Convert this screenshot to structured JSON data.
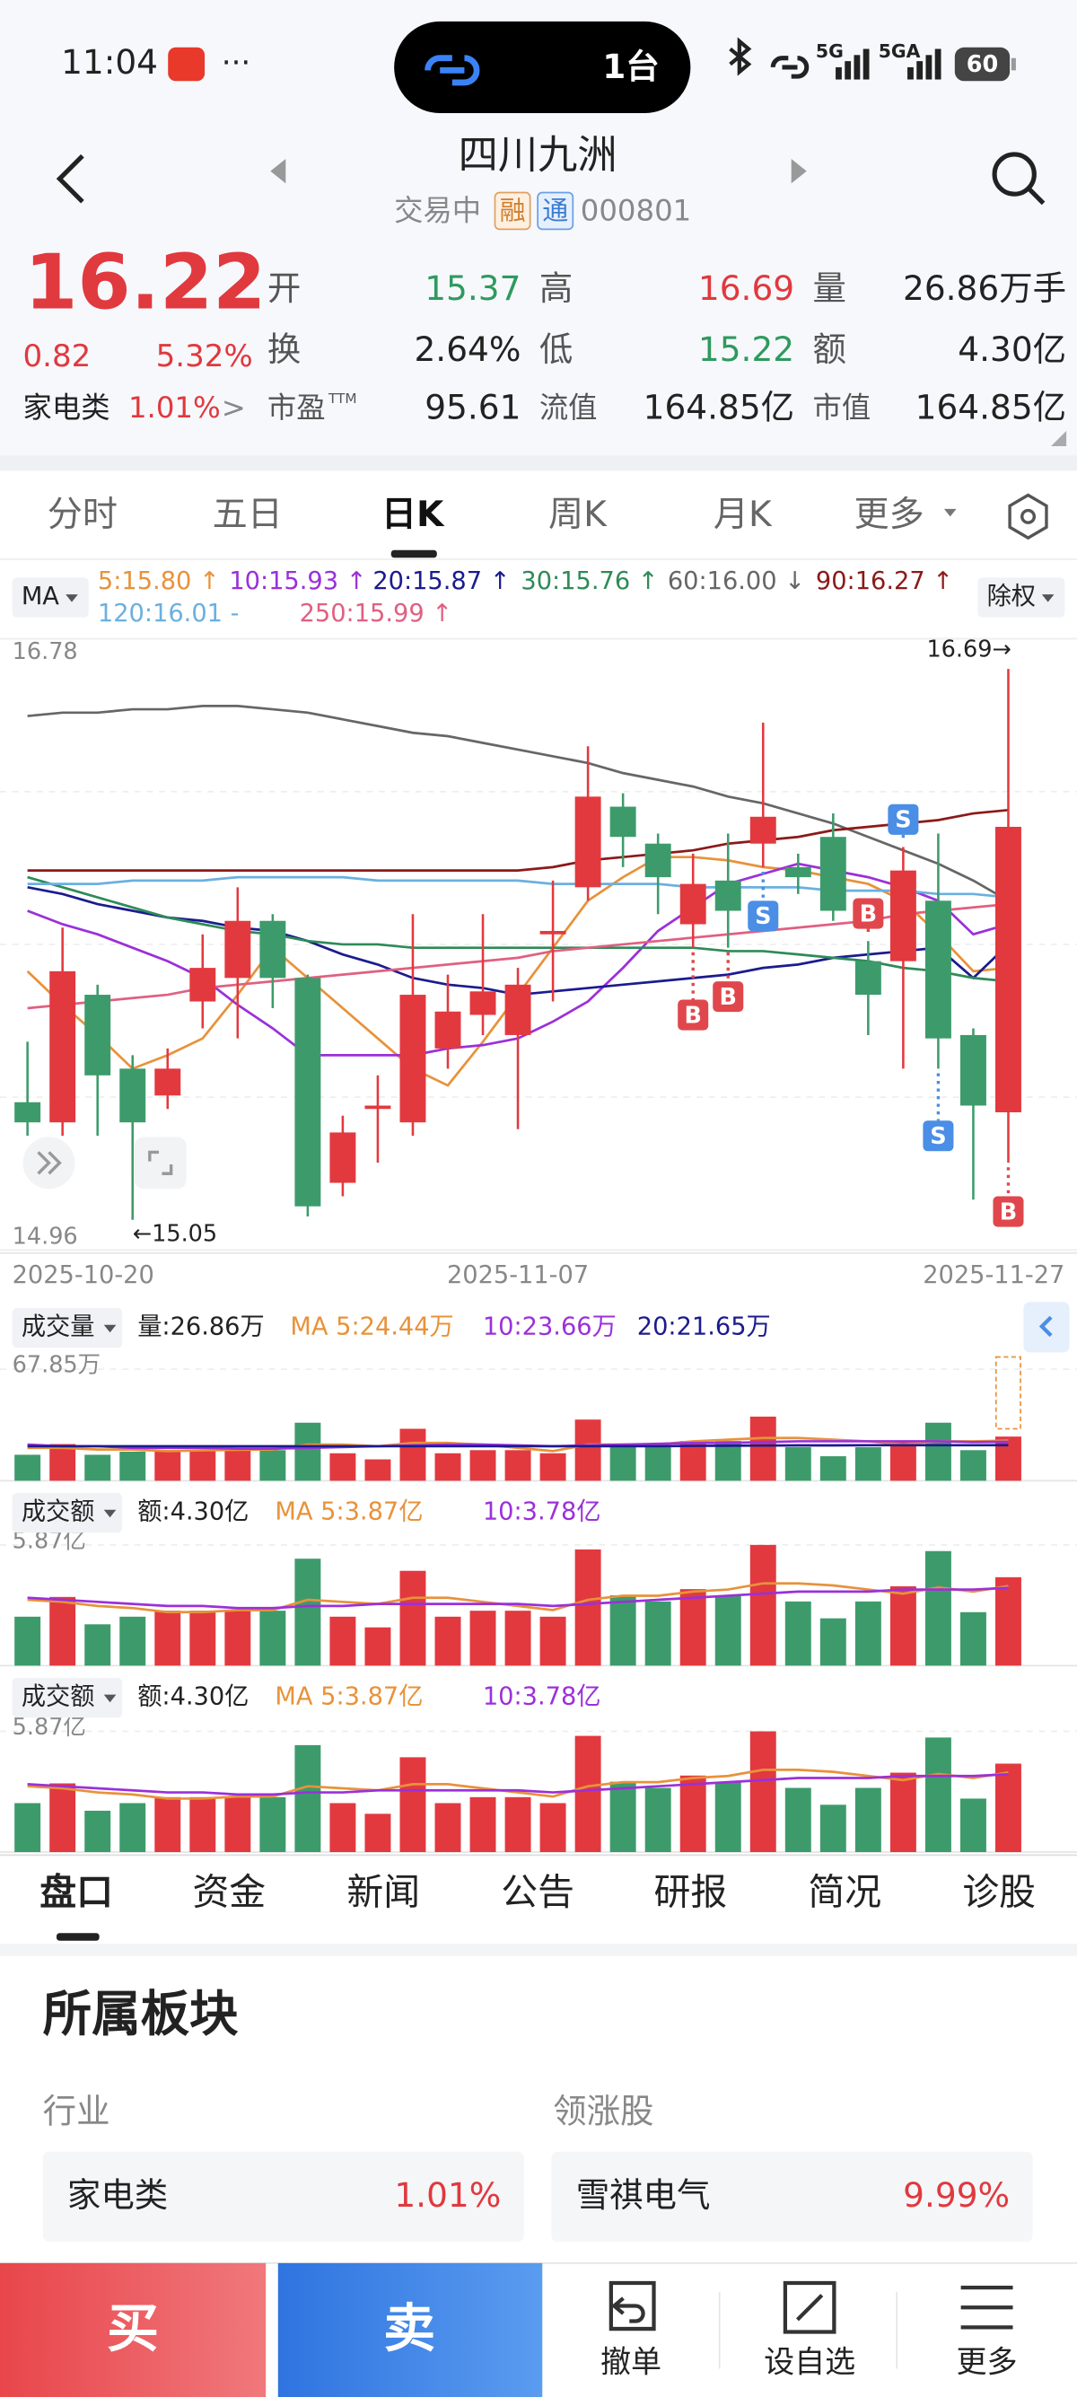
{
  "status_bar": {
    "time": "11:04",
    "more": "···",
    "island_text": "1台",
    "signal1": "5G",
    "signal2": "5GA",
    "battery": "60"
  },
  "header": {
    "title": "四川九洲",
    "state": "交易中",
    "tag1": "融",
    "tag2": "通",
    "code": "000801"
  },
  "quote": {
    "price": "16.22",
    "change": "0.82",
    "change_pct": "5.32%",
    "sector": "家电类",
    "sector_pct": "1.01%",
    "sector_arrow": ">",
    "pe_suffix": "TTM",
    "stats": [
      {
        "label": "开",
        "value": "15.37",
        "color": "#2e9a5e"
      },
      {
        "label": "高",
        "value": "16.69",
        "color": "#e0393e"
      },
      {
        "label": "量",
        "value": "26.86万手",
        "color": "#222222"
      },
      {
        "label": "换",
        "value": "2.64%",
        "color": "#222222"
      },
      {
        "label": "低",
        "value": "15.22",
        "color": "#2e9a5e"
      },
      {
        "label": "额",
        "value": "4.30亿",
        "color": "#222222"
      },
      {
        "label": "市盈",
        "value": "95.61",
        "color": "#222222"
      },
      {
        "label": "流值",
        "value": "164.85亿",
        "color": "#222222"
      },
      {
        "label": "市值",
        "value": "164.85亿",
        "color": "#222222"
      }
    ]
  },
  "chart_tabs": [
    "分时",
    "五日",
    "日K",
    "周K",
    "月K",
    "更多"
  ],
  "chart_controls": {
    "ma": "MA",
    "adjust": "除权"
  },
  "chart_data": [
    {
      "type": "candlestick",
      "categories": [
        "2025-10-20",
        null,
        null,
        null,
        null,
        null,
        null,
        null,
        null,
        null,
        null,
        null,
        null,
        null,
        "2025-11-07",
        null,
        null,
        null,
        null,
        null,
        null,
        null,
        null,
        null,
        null,
        null,
        null,
        null,
        "2025-11-27"
      ],
      "open": [
        15.4,
        15.34,
        15.72,
        15.5,
        15.42,
        15.7,
        15.77,
        15.94,
        15.77,
        15.16,
        15.38,
        15.34,
        15.56,
        15.66,
        15.6,
        15.9,
        16.04,
        16.28,
        16.17,
        15.93,
        16.06,
        16.17,
        16.1,
        16.19,
        15.82,
        15.82,
        16.0,
        15.6,
        15.37
      ],
      "high": [
        15.58,
        15.92,
        15.75,
        15.54,
        15.56,
        15.9,
        16.04,
        15.96,
        15.78,
        15.36,
        15.48,
        15.96,
        15.78,
        15.96,
        15.8,
        16.06,
        16.46,
        16.32,
        16.2,
        16.14,
        16.2,
        16.53,
        16.14,
        16.26,
        15.88,
        16.16,
        16.2,
        15.62,
        16.69
      ],
      "low": [
        15.3,
        15.3,
        15.3,
        15.05,
        15.38,
        15.62,
        15.59,
        15.68,
        15.06,
        15.12,
        15.22,
        15.3,
        15.5,
        15.6,
        15.32,
        15.7,
        16.0,
        16.1,
        15.96,
        15.86,
        15.86,
        16.1,
        16.02,
        15.94,
        15.6,
        15.5,
        15.5,
        15.11,
        15.22
      ],
      "close": [
        15.34,
        15.79,
        15.48,
        15.34,
        15.5,
        15.8,
        15.94,
        15.77,
        15.09,
        15.31,
        15.39,
        15.72,
        15.67,
        15.73,
        15.75,
        15.91,
        16.31,
        16.19,
        16.07,
        16.05,
        15.97,
        16.25,
        16.07,
        15.97,
        15.72,
        16.09,
        15.59,
        15.39,
        16.22
      ],
      "up_color": "#e2393f",
      "down_color": "#3d9b6b",
      "ylim": [
        14.96,
        16.78
      ],
      "yticks": [
        14.96,
        16.78
      ],
      "grid": true,
      "series": [
        {
          "name": "5:15.80 ↑",
          "color": "#e8923a",
          "values": [
            15.79,
            15.69,
            15.6,
            15.5,
            15.54,
            15.59,
            15.72,
            15.86,
            15.77,
            15.68,
            15.59,
            15.5,
            15.45,
            15.58,
            15.72,
            15.86,
            16.0,
            16.07,
            16.13,
            16.13,
            16.12,
            16.1,
            16.09,
            16.07,
            16.05,
            16.0,
            15.9,
            15.79,
            15.8
          ]
        },
        {
          "name": "10:15.93 ↑",
          "color": "#9b30d9",
          "values": [
            15.97,
            15.93,
            15.9,
            15.86,
            15.82,
            15.77,
            15.69,
            15.62,
            15.54,
            15.54,
            15.54,
            15.54,
            15.56,
            15.57,
            15.59,
            15.64,
            15.7,
            15.8,
            15.91,
            15.98,
            16.05,
            16.08,
            16.11,
            16.09,
            16.07,
            16.04,
            16.0,
            15.9,
            15.93
          ]
        },
        {
          "name": "20:15.87 ↑",
          "color": "#1b1b8f",
          "values": [
            16.04,
            16.02,
            15.99,
            15.97,
            15.95,
            15.94,
            15.92,
            15.91,
            15.88,
            15.84,
            15.81,
            15.77,
            15.75,
            15.74,
            15.72,
            15.73,
            15.74,
            15.75,
            15.76,
            15.77,
            15.78,
            15.8,
            15.81,
            15.83,
            15.84,
            15.85,
            15.86,
            15.77,
            15.87
          ]
        },
        {
          "name": "30:15.76 ↑",
          "color": "#2e8b57",
          "values": [
            16.07,
            16.04,
            16.01,
            15.98,
            15.95,
            15.93,
            15.91,
            15.9,
            15.88,
            15.87,
            15.87,
            15.86,
            15.86,
            15.86,
            15.86,
            15.86,
            15.86,
            15.86,
            15.86,
            15.86,
            15.85,
            15.85,
            15.84,
            15.83,
            15.82,
            15.8,
            15.79,
            15.77,
            15.76
          ]
        },
        {
          "name": "60:16.00 ↓",
          "color": "#666666",
          "values": [
            16.55,
            16.56,
            16.56,
            16.57,
            16.57,
            16.58,
            16.58,
            16.57,
            16.56,
            16.54,
            16.52,
            16.5,
            16.49,
            16.47,
            16.45,
            16.43,
            16.41,
            16.38,
            16.36,
            16.34,
            16.31,
            16.29,
            16.26,
            16.23,
            16.19,
            16.15,
            16.11,
            16.06,
            16.0
          ]
        },
        {
          "name": "90:16.27 ↑",
          "color": "#8b1a1a",
          "values": [
            16.09,
            16.09,
            16.09,
            16.09,
            16.09,
            16.09,
            16.09,
            16.09,
            16.09,
            16.09,
            16.09,
            16.09,
            16.09,
            16.09,
            16.09,
            16.1,
            16.12,
            16.13,
            16.14,
            16.15,
            16.17,
            16.18,
            16.19,
            16.21,
            16.22,
            16.23,
            16.24,
            16.26,
            16.27
          ]
        },
        {
          "name": "120:16.01 -",
          "color": "#6ab0e0",
          "values": [
            16.05,
            16.05,
            16.05,
            16.06,
            16.06,
            16.06,
            16.07,
            16.07,
            16.07,
            16.07,
            16.06,
            16.06,
            16.06,
            16.06,
            16.06,
            16.05,
            16.05,
            16.05,
            16.05,
            16.04,
            16.04,
            16.04,
            16.04,
            16.03,
            16.03,
            16.03,
            16.02,
            16.02,
            16.01
          ]
        },
        {
          "name": "250:15.99 ↑",
          "color": "#e06080",
          "values": [
            15.68,
            15.69,
            15.7,
            15.71,
            15.72,
            15.74,
            15.75,
            15.76,
            15.77,
            15.78,
            15.79,
            15.8,
            15.81,
            15.82,
            15.83,
            15.85,
            15.86,
            15.87,
            15.88,
            15.89,
            15.9,
            15.91,
            15.92,
            15.93,
            15.94,
            15.96,
            15.97,
            15.98,
            15.99
          ]
        }
      ],
      "annotations": {
        "high": "16.69→",
        "low": "←15.05"
      },
      "signals": [
        {
          "label": "S",
          "index": 25,
          "side": "above",
          "color": "#4a8ee6"
        },
        {
          "label": "B",
          "index": 24,
          "side": "above",
          "color": "#e0474c"
        },
        {
          "label": "S",
          "index": 21,
          "side": "below",
          "color": "#4a8ee6"
        },
        {
          "label": "B",
          "index": 19,
          "side": "below",
          "color": "#e0474c"
        },
        {
          "label": "B",
          "index": 20,
          "side": "below",
          "color": "#e0474c"
        },
        {
          "label": "S",
          "index": 26,
          "side": "below",
          "color": "#4a8ee6"
        },
        {
          "label": "B",
          "index": 28,
          "side": "below",
          "color": "#e0474c"
        }
      ]
    },
    {
      "type": "bar",
      "label": "成交量",
      "ylim": [
        0,
        67.85
      ],
      "yticks": [
        {
          "value": 67.85,
          "label": "67.85万"
        }
      ],
      "series": [
        {
          "name": "量:26.86万",
          "values": [
            15.8,
            22.3,
            15.8,
            17.7,
            18.6,
            18.6,
            18.6,
            18.6,
            35.3,
            16.7,
            13.0,
            31.6,
            16.7,
            18.6,
            18.6,
            16.7,
            37.2,
            20.4,
            20.4,
            24.2,
            24.2,
            39.0,
            20.4,
            14.9,
            20.4,
            24.2,
            35.3,
            18.6,
            26.86
          ],
          "colors": [
            "#3d9b6b",
            "#e2393f",
            "#3d9b6b",
            "#3d9b6b",
            "#e2393f",
            "#e2393f",
            "#e2393f",
            "#3d9b6b",
            "#3d9b6b",
            "#e2393f",
            "#e2393f",
            "#e2393f",
            "#e2393f",
            "#e2393f",
            "#e2393f",
            "#e2393f",
            "#e2393f",
            "#3d9b6b",
            "#3d9b6b",
            "#e2393f",
            "#3d9b6b",
            "#e2393f",
            "#3d9b6b",
            "#3d9b6b",
            "#3d9b6b",
            "#e2393f",
            "#3d9b6b",
            "#3d9b6b",
            "#e2393f"
          ]
        },
        {
          "name": "MA 5:24.44万",
          "color": "#e8923a",
          "values": [
            20,
            20,
            19,
            19,
            18,
            18.5,
            18.8,
            19,
            22,
            22,
            21,
            23,
            23,
            22,
            20,
            18,
            22,
            22,
            22,
            24,
            25,
            26,
            26,
            25,
            24,
            22,
            24,
            24,
            24.44
          ]
        },
        {
          "name": "10:23.66万",
          "color": "#9b30d9",
          "values": [
            22,
            21,
            21,
            20,
            20,
            20,
            19.5,
            19.5,
            20,
            20.5,
            21,
            21.5,
            22,
            22,
            21.5,
            21,
            21.5,
            22,
            22.5,
            23,
            23,
            23.5,
            24,
            24,
            24,
            24,
            24,
            23.5,
            23.66
          ]
        },
        {
          "name": "20:21.65万",
          "color": "#1b1b8f",
          "values": [
            21,
            21,
            21,
            21,
            21,
            21,
            21,
            21,
            21,
            21,
            21,
            21,
            21,
            21,
            21,
            21,
            21,
            21,
            21,
            21.2,
            21.3,
            21.4,
            21.5,
            21.5,
            21.6,
            21.6,
            21.6,
            21.6,
            21.65
          ]
        }
      ]
    },
    {
      "type": "bar",
      "label": "成交额",
      "ylim": [
        0,
        5.87
      ],
      "yticks": [
        {
          "value": 5.87,
          "label": "5.87亿"
        }
      ],
      "series": [
        {
          "name": "额:4.30亿",
          "values": [
            2.38,
            3.34,
            2.01,
            2.38,
            2.67,
            2.67,
            2.67,
            2.67,
            5.2,
            2.38,
            1.86,
            4.61,
            2.38,
            2.67,
            2.67,
            2.38,
            5.65,
            3.42,
            3.12,
            3.72,
            3.42,
            5.87,
            3.12,
            2.3,
            3.12,
            3.86,
            5.57,
            2.6,
            4.3
          ],
          "colors": [
            "#3d9b6b",
            "#e2393f",
            "#3d9b6b",
            "#3d9b6b",
            "#e2393f",
            "#e2393f",
            "#e2393f",
            "#3d9b6b",
            "#3d9b6b",
            "#e2393f",
            "#e2393f",
            "#e2393f",
            "#e2393f",
            "#e2393f",
            "#e2393f",
            "#e2393f",
            "#e2393f",
            "#3d9b6b",
            "#3d9b6b",
            "#e2393f",
            "#3d9b6b",
            "#e2393f",
            "#3d9b6b",
            "#3d9b6b",
            "#3d9b6b",
            "#e2393f",
            "#3d9b6b",
            "#3d9b6b",
            "#e2393f"
          ]
        },
        {
          "name": "MA 5:3.87亿",
          "color": "#e8923a",
          "values": [
            3.2,
            3.1,
            2.9,
            2.8,
            2.6,
            2.6,
            2.7,
            2.7,
            3.2,
            3.1,
            3.0,
            3.3,
            3.3,
            3.1,
            2.9,
            2.7,
            3.2,
            3.4,
            3.4,
            3.6,
            3.7,
            4.0,
            4.0,
            3.9,
            3.7,
            3.5,
            3.8,
            3.6,
            3.87
          ]
        },
        {
          "name": "10:3.78亿",
          "color": "#9b30d9",
          "values": [
            3.3,
            3.2,
            3.1,
            3.0,
            2.9,
            2.9,
            2.8,
            2.8,
            2.9,
            2.9,
            3.0,
            3.0,
            3.0,
            3.0,
            3.0,
            2.9,
            3.0,
            3.1,
            3.2,
            3.3,
            3.4,
            3.5,
            3.6,
            3.6,
            3.6,
            3.7,
            3.7,
            3.7,
            3.78
          ]
        }
      ]
    }
  ],
  "info_tabs": [
    "盘口",
    "资金",
    "新闻",
    "公告",
    "研报",
    "简况",
    "诊股"
  ],
  "sector_section": {
    "title": "所属板块",
    "industry_label": "行业",
    "leader_label": "领涨股",
    "industry": {
      "name": "家电类",
      "pct": "1.01%"
    },
    "leader": {
      "name": "雪祺电气",
      "pct": "9.99%"
    }
  },
  "bottom_bar": {
    "buy": "买",
    "sell": "卖",
    "actions": [
      "撤单",
      "设自选",
      "更多"
    ]
  }
}
